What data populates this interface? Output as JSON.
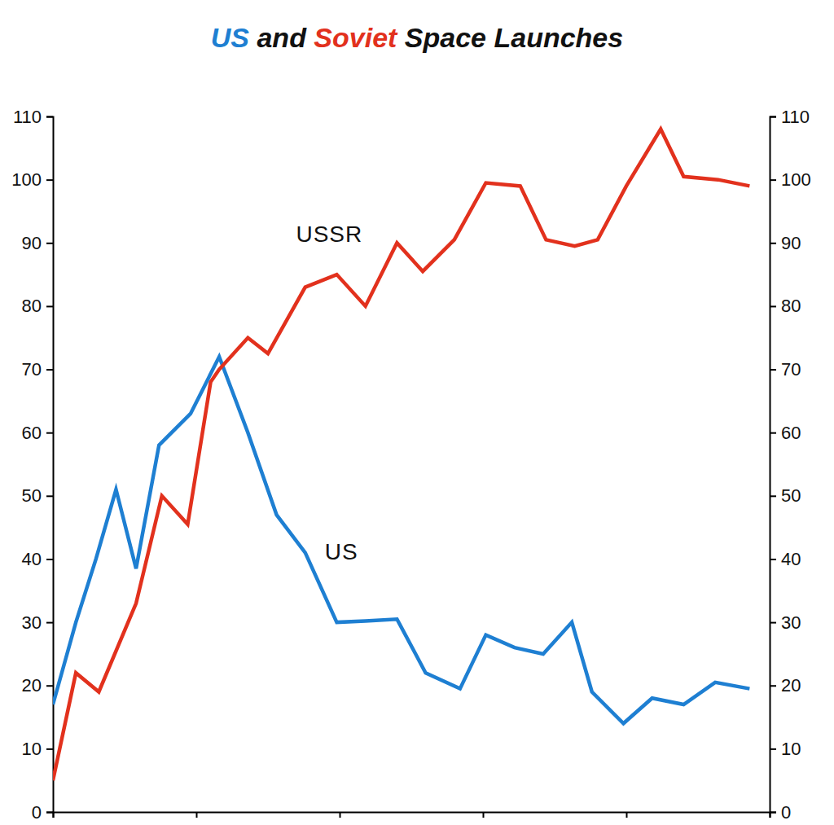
{
  "chart_data": {
    "type": "line",
    "title": "US and Soviet Space Launches",
    "tick_labels": "y",
    "xlim": [
      0,
      25
    ],
    "xticks": [
      0,
      5,
      10,
      15,
      20,
      25
    ],
    "ylim": [
      0,
      110
    ],
    "yticks": [
      0,
      10,
      20,
      30,
      40,
      50,
      60,
      70,
      80,
      90,
      100,
      110
    ],
    "y2lim": [
      0,
      110
    ],
    "y2ticks": [
      0,
      10,
      20,
      30,
      40,
      50,
      60,
      70,
      80,
      90,
      100,
      110
    ],
    "series": [
      {
        "name": "US",
        "color": "#1e7fd2",
        "x": [
          0,
          0.8,
          1.5,
          2.2,
          2.9,
          3.7,
          4.8,
          5.8,
          6.8,
          7.8,
          8.8,
          9.9,
          10.9,
          12.0,
          13.0,
          14.2,
          15.1,
          16.1,
          17.1,
          18.1,
          18.8,
          19.9,
          20.9,
          22.0,
          23.1,
          24.3
        ],
        "values": [
          17,
          30,
          40,
          51,
          38.5,
          58,
          63,
          72,
          60,
          47,
          41,
          30,
          30.2,
          30.5,
          22,
          19.5,
          28,
          26,
          25,
          30,
          19,
          14,
          18,
          17,
          20.5,
          19.5
        ]
      },
      {
        "name": "USSR",
        "color": "#e2311d",
        "x": [
          0,
          0.8,
          1.6,
          2.9,
          3.8,
          4.7,
          5.5,
          5.8,
          6.8,
          7.5,
          8.8,
          9.9,
          10.9,
          12.0,
          12.9,
          14.0,
          15.1,
          16.3,
          17.2,
          18.2,
          19.0,
          20.0,
          21.2,
          22.0,
          23.2,
          24.3
        ],
        "values": [
          5,
          22,
          19,
          33,
          50,
          45.5,
          68,
          70,
          75,
          72.5,
          83,
          85,
          80,
          90,
          85.5,
          90.5,
          99.5,
          99,
          90.5,
          89.5,
          90.5,
          99,
          108,
          100.5,
          100,
          99
        ]
      }
    ]
  }
}
